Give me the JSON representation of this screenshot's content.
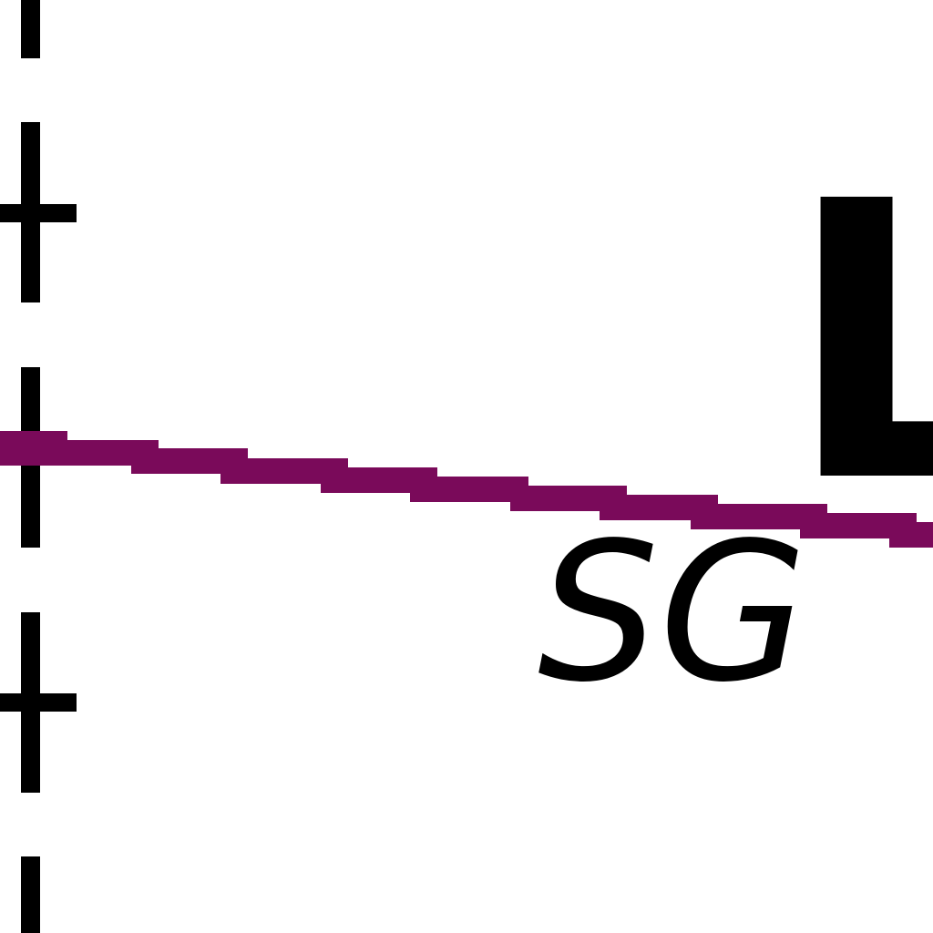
{
  "map": {
    "large_label": "L",
    "small_label": "SG",
    "colors": {
      "background": "#ffffff",
      "boundary_line": "#000000",
      "route_line": "#7a0a5a",
      "text": "#000000"
    }
  }
}
